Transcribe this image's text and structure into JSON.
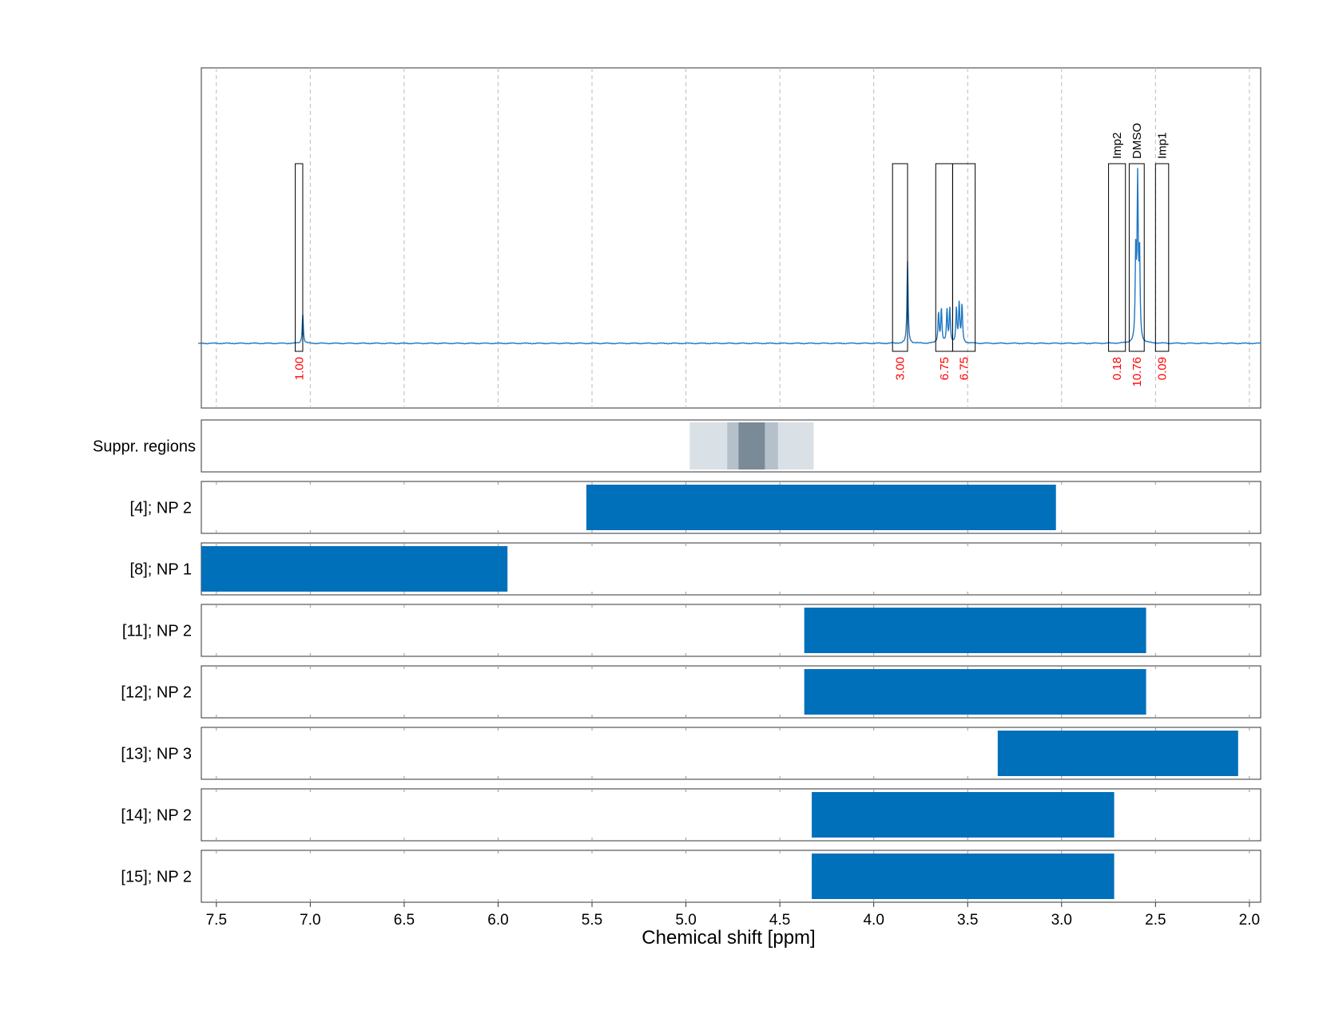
{
  "chart_data": {
    "type": "nmr-spectrum-with-range-bars",
    "xlabel": "Chemical shift [ppm]",
    "xlim": [
      7.58,
      1.94
    ],
    "x_reversed": true,
    "x_ticks": [
      7.5,
      7.0,
      6.5,
      6.0,
      5.5,
      5.0,
      4.5,
      4.0,
      3.5,
      3.0,
      2.5,
      2.0
    ],
    "x_tick_labels": [
      "7.5",
      "7.0",
      "6.5",
      "6.0",
      "5.5",
      "5.0",
      "4.5",
      "4.0",
      "3.5",
      "3.0",
      "2.5",
      "2.0"
    ],
    "grid": true,
    "colors": {
      "spectrum": "#1f77c4",
      "bar": "#0070bb",
      "integral_label": "#ff0000",
      "suppr_outer": "#d9e0e6",
      "suppr_mid": "#b4c0ca",
      "suppr_inner": "#7a8a97",
      "frame": "#555555"
    },
    "spectrum": {
      "baseline": 0,
      "peaks": [
        {
          "x": 7.04,
          "height": 0.17
        },
        {
          "x": 3.82,
          "height": 0.48
        },
        {
          "x": 3.655,
          "height": 0.18
        },
        {
          "x": 3.64,
          "height": 0.2
        },
        {
          "x": 3.61,
          "height": 0.19
        },
        {
          "x": 3.595,
          "height": 0.2
        },
        {
          "x": 3.56,
          "height": 0.2
        },
        {
          "x": 3.545,
          "height": 0.23
        },
        {
          "x": 3.53,
          "height": 0.22
        },
        {
          "x": 2.605,
          "height": 0.52
        },
        {
          "x": 2.595,
          "height": 0.91
        },
        {
          "x": 2.585,
          "height": 0.5
        }
      ]
    },
    "integration_regions": [
      {
        "from": 7.08,
        "to": 7.04,
        "integral": "1.00",
        "label": ""
      },
      {
        "from": 3.9,
        "to": 3.82,
        "integral": "3.00",
        "label": ""
      },
      {
        "from": 3.67,
        "to": 3.58,
        "integral": "6.75",
        "label": ""
      },
      {
        "from": 3.58,
        "to": 3.46,
        "integral": "6.75",
        "label": ""
      },
      {
        "from": 2.75,
        "to": 2.66,
        "integral": "0.18",
        "label": "Imp2"
      },
      {
        "from": 2.64,
        "to": 2.56,
        "integral": "10.76",
        "label": "DMSO"
      },
      {
        "from": 2.5,
        "to": 2.43,
        "integral": "0.09",
        "label": "Imp1"
      }
    ],
    "suppressed_regions": {
      "label": "Suppr. regions",
      "bands": [
        {
          "from": 4.98,
          "to": 4.32,
          "level": "outer"
        },
        {
          "from": 4.78,
          "to": 4.51,
          "level": "mid"
        },
        {
          "from": 4.72,
          "to": 4.58,
          "level": "inner"
        }
      ]
    },
    "range_rows": [
      {
        "label": "[4]; NP 2",
        "from": 5.53,
        "to": 3.03
      },
      {
        "label": "[8]; NP 1",
        "from": 7.58,
        "to": 5.95
      },
      {
        "label": "[11]; NP 2",
        "from": 4.37,
        "to": 2.55
      },
      {
        "label": "[12]; NP 2",
        "from": 4.37,
        "to": 2.55
      },
      {
        "label": "[13]; NP 3",
        "from": 3.34,
        "to": 2.06
      },
      {
        "label": "[14]; NP 2",
        "from": 4.33,
        "to": 2.72
      },
      {
        "label": "[15]; NP 2",
        "from": 4.33,
        "to": 2.72
      }
    ]
  }
}
